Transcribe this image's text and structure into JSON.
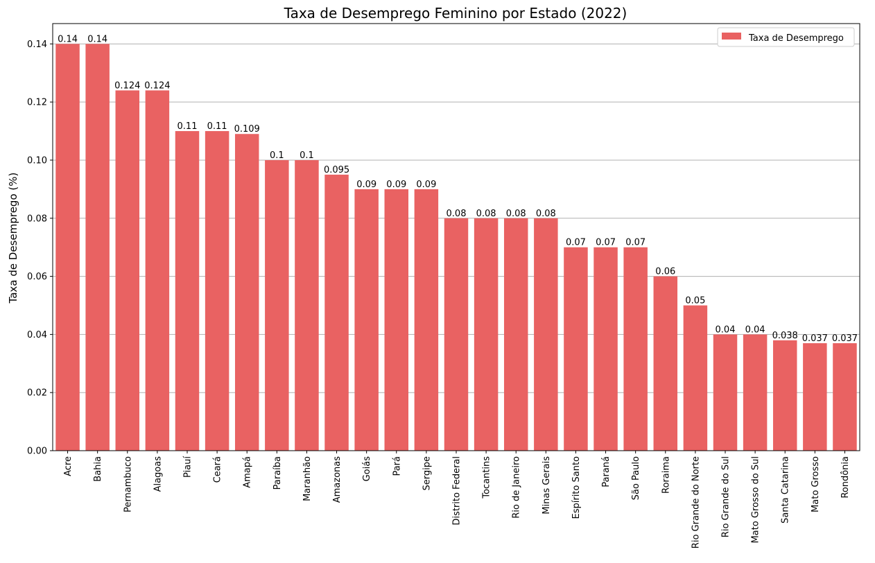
{
  "chart_data": {
    "type": "bar",
    "title": "Taxa de Desemprego Feminino por Estado (2022)",
    "xlabel": "",
    "ylabel": "Taxa de Desemprego (%)",
    "ylim": [
      0,
      0.147
    ],
    "yticks": [
      "0.00",
      "0.02",
      "0.04",
      "0.06",
      "0.08",
      "0.10",
      "0.12",
      "0.14"
    ],
    "grid": "horizontal",
    "legend_position": "top-right",
    "bar_color": "#e96262",
    "categories": [
      "Acre",
      "Bahia",
      "Pernambuco",
      "Alagoas",
      "Piauí",
      "Ceará",
      "Amapá",
      "Paraíba",
      "Maranhão",
      "Amazonas",
      "Goiás",
      "Pará",
      "Sergipe",
      "Distrito Federal",
      "Tocantins",
      "Rio de Janeiro",
      "Minas Gerais",
      "Espírito Santo",
      "Paraná",
      "São Paulo",
      "Roraima",
      "Rio Grande do Norte",
      "Rio Grande do Sul",
      "Mato Grosso do Sul",
      "Santa Catarina",
      "Mato Grosso",
      "Rondônia"
    ],
    "series": [
      {
        "name": "Taxa de Desemprego",
        "values": [
          0.14,
          0.14,
          0.124,
          0.124,
          0.11,
          0.11,
          0.109,
          0.1,
          0.1,
          0.095,
          0.09,
          0.09,
          0.09,
          0.08,
          0.08,
          0.08,
          0.08,
          0.07,
          0.07,
          0.07,
          0.06,
          0.05,
          0.04,
          0.04,
          0.038,
          0.037,
          0.037
        ],
        "labels": [
          "0.14",
          "0.14",
          "0.124",
          "0.124",
          "0.11",
          "0.11",
          "0.109",
          "0.1",
          "0.1",
          "0.095",
          "0.09",
          "0.09",
          "0.09",
          "0.08",
          "0.08",
          "0.08",
          "0.08",
          "0.07",
          "0.07",
          "0.07",
          "0.06",
          "0.05",
          "0.04",
          "0.04",
          "0.038",
          "0.037",
          "0.037"
        ]
      }
    ]
  }
}
